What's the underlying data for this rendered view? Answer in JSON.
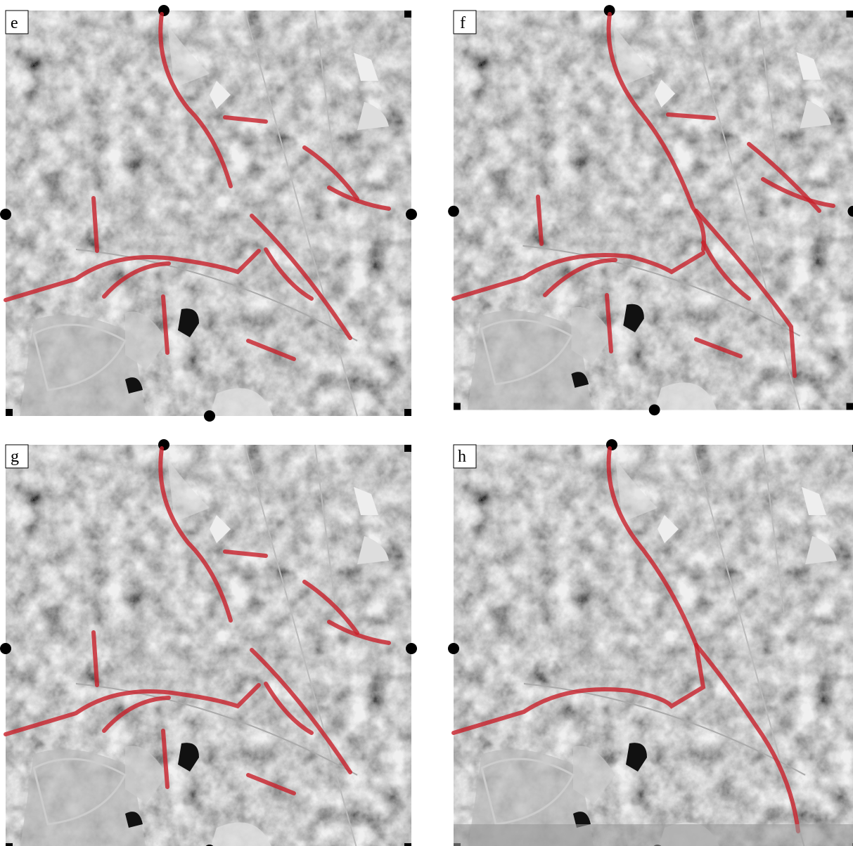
{
  "panels": [
    {
      "label": "e"
    },
    {
      "label": "f"
    },
    {
      "label": "g"
    },
    {
      "label": "h"
    }
  ]
}
